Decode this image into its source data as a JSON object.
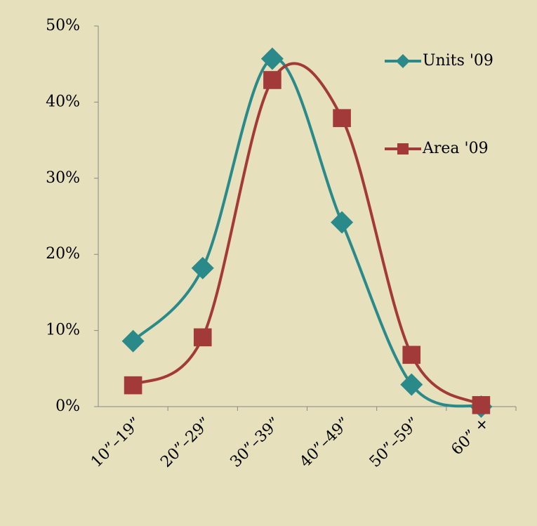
{
  "chart_data": {
    "type": "line",
    "categories": [
      "10”–19”",
      "20”–29”",
      "30”–39”",
      "40”–49”",
      "50”–59”",
      "60” +"
    ],
    "series": [
      {
        "name": "Units '09",
        "color": "#2a8a8a",
        "marker": "diamond",
        "values": [
          8.6,
          18.2,
          45.7,
          24.2,
          2.9,
          0
        ]
      },
      {
        "name": "Area '09",
        "color": "#a33a3a",
        "marker": "square",
        "values": [
          2.8,
          9.1,
          42.9,
          37.9,
          6.8,
          0.2
        ]
      }
    ],
    "ylim": [
      0,
      50
    ],
    "yticks": [
      {
        "value": 0,
        "label": "0%"
      },
      {
        "value": 10,
        "label": "10%"
      },
      {
        "value": 20,
        "label": "20%"
      },
      {
        "value": 30,
        "label": "30%"
      },
      {
        "value": 40,
        "label": "40%"
      },
      {
        "value": 50,
        "label": "50%"
      }
    ],
    "grid": false,
    "smooth": true,
    "legend": "upper right"
  }
}
